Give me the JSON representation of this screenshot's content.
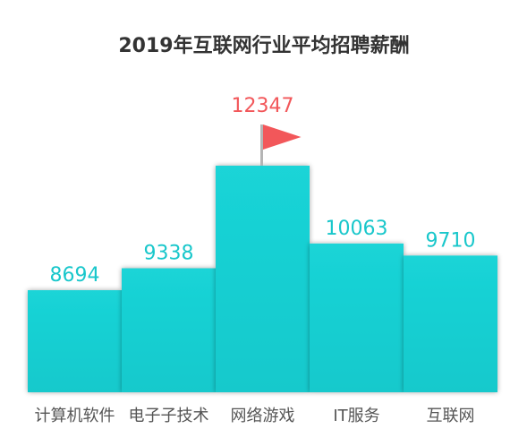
{
  "chart_data": {
    "type": "bar",
    "title": "2019年互联网行业平均招聘薪酬",
    "categories": [
      "计算机软件",
      "电子子技术",
      "网络游戏",
      "IT服务",
      "互联网"
    ],
    "values": [
      8694,
      9338,
      12347,
      10063,
      9710
    ],
    "xlabel": "",
    "ylabel": "",
    "ylim": [
      0,
      12347
    ],
    "grid": false,
    "legend": "none",
    "highlight_index": 2,
    "colors": {
      "bar": "#19D0D3",
      "bar_shadow": "#0FA5A8",
      "label": "#19C7CB",
      "highlight_label": "#F2575A",
      "flag": "#F2575A",
      "pole": "#B5B5B5"
    },
    "icons": {
      "highlight_marker": "flag-icon"
    }
  }
}
